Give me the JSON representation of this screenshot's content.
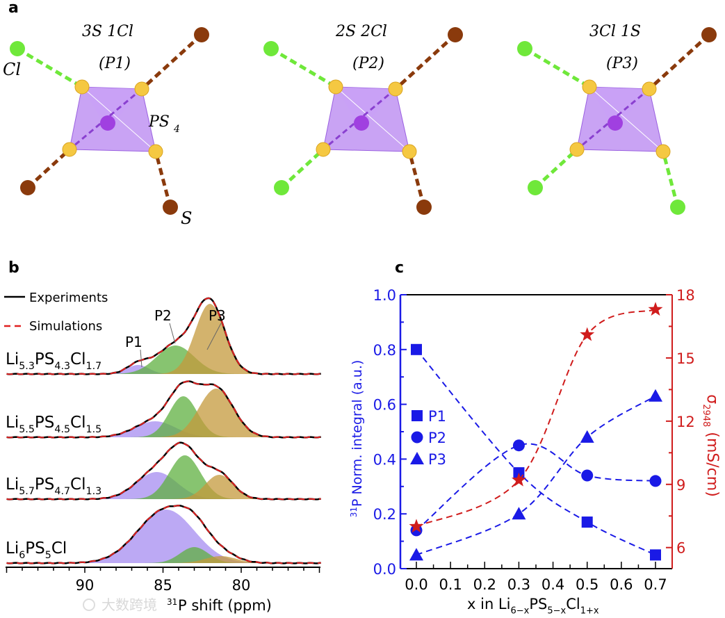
{
  "panel_a": {
    "label": "a",
    "structures": [
      {
        "title": "3S 1Cl",
        "code": "(P1)",
        "ligands": [
          "Cl",
          "S",
          "S",
          "S"
        ]
      },
      {
        "title": "2S 2Cl",
        "code": "(P2)",
        "ligands": [
          "Cl",
          "S",
          "Cl",
          "S"
        ]
      },
      {
        "title": "3Cl 1S",
        "code": "(P3)",
        "ligands": [
          "Cl",
          "S",
          "Cl",
          "Cl"
        ]
      }
    ],
    "annotations": {
      "cl": "Cl",
      "s": "S",
      "ps4": "PS",
      "ps4_sub": "4"
    },
    "colors": {
      "Cl": "#6fe83a",
      "S": "#8a3a0c",
      "S_inner": "#f5c842",
      "P": "#a040e0",
      "tetra": "#b784f0"
    }
  },
  "chart_data": [
    {
      "panel": "b",
      "type": "line",
      "title": "",
      "xlabel_sup": "31",
      "xlabel": "P shift (ppm)",
      "xlim": [
        95,
        75
      ],
      "xticks": [
        "90",
        "85",
        "80"
      ],
      "legend": [
        {
          "label": "Experiments",
          "color": "#000000",
          "style": "solid"
        },
        {
          "label": "Simulations",
          "color": "#e02020",
          "style": "dashed"
        }
      ],
      "legend_position": "top-left",
      "component_colors": {
        "P1": "#a58cf0",
        "P2": "#5fb040",
        "P3": "#c49a3c"
      },
      "peak_labels": [
        "P1",
        "P2",
        "P3"
      ],
      "spectra": [
        {
          "formula": [
            [
              "Li",
              ""
            ],
            [
              "5.3",
              "sub"
            ],
            [
              "PS",
              ""
            ],
            [
              "4.3",
              "sub"
            ],
            [
              "Cl",
              ""
            ],
            [
              "1.7",
              "sub"
            ]
          ],
          "components": [
            {
              "name": "P1",
              "center": 86.6,
              "amp": 0.13,
              "sigma": 0.7
            },
            {
              "name": "P2",
              "center": 84.2,
              "amp": 0.41,
              "sigma": 1.2
            },
            {
              "name": "P3",
              "center": 82.0,
              "amp": 1.01,
              "sigma": 0.95
            }
          ]
        },
        {
          "formula": [
            [
              "Li",
              ""
            ],
            [
              "5.5",
              "sub"
            ],
            [
              "PS",
              ""
            ],
            [
              "4.5",
              "sub"
            ],
            [
              "Cl",
              ""
            ],
            [
              "1.5",
              "sub"
            ]
          ],
          "components": [
            {
              "name": "P1",
              "center": 85.5,
              "amp": 0.23,
              "sigma": 1.3
            },
            {
              "name": "P2",
              "center": 83.7,
              "amp": 0.59,
              "sigma": 0.9
            },
            {
              "name": "P3",
              "center": 81.6,
              "amp": 0.7,
              "sigma": 1.1
            }
          ]
        },
        {
          "formula": [
            [
              "Li",
              ""
            ],
            [
              "5.7",
              "sub"
            ],
            [
              "PS",
              ""
            ],
            [
              "4.7",
              "sub"
            ],
            [
              "Cl",
              ""
            ],
            [
              "1.3",
              "sub"
            ]
          ],
          "components": [
            {
              "name": "P1",
              "center": 85.4,
              "amp": 0.39,
              "sigma": 1.3
            },
            {
              "name": "P2",
              "center": 83.6,
              "amp": 0.63,
              "sigma": 1.0
            },
            {
              "name": "P3",
              "center": 81.4,
              "amp": 0.35,
              "sigma": 0.9
            }
          ]
        },
        {
          "formula": [
            [
              "Li",
              ""
            ],
            [
              "6",
              "sub"
            ],
            [
              "PS",
              ""
            ],
            [
              "5",
              "sub"
            ],
            [
              "Cl",
              ""
            ]
          ],
          "components": [
            {
              "name": "P1",
              "center": 84.8,
              "amp": 0.77,
              "sigma": 1.8
            },
            {
              "name": "P2",
              "center": 83.0,
              "amp": 0.23,
              "sigma": 0.9
            },
            {
              "name": "P3",
              "center": 81.3,
              "amp": 0.1,
              "sigma": 1.0
            }
          ]
        }
      ]
    },
    {
      "panel": "c",
      "type": "scatter",
      "title": "",
      "xlabel": [
        [
          "x in Li",
          ""
        ],
        [
          "6−x",
          "sub"
        ],
        [
          "PS",
          ""
        ],
        [
          "5−x",
          "sub"
        ],
        [
          "Cl",
          ""
        ],
        [
          "1+x",
          "sub"
        ]
      ],
      "ylabel_sup": "31",
      "ylabel": "P Norm. integral (a.u.)",
      "y2label": "σ",
      "y2label_sub": "2948",
      "y2label_unit": " (mS/cm)",
      "x": [
        0.0,
        0.3,
        0.5,
        0.7
      ],
      "xlim": [
        -0.05,
        0.75
      ],
      "xticks": [
        "0.0",
        "0.1",
        "0.2",
        "0.3",
        "0.4",
        "0.5",
        "0.6",
        "0.7"
      ],
      "ylim": [
        0,
        1.0
      ],
      "yticks": [
        "0.0",
        "0.2",
        "0.4",
        "0.6",
        "0.8",
        "1.0"
      ],
      "y2lim": [
        5,
        18
      ],
      "y2ticks": [
        "6",
        "9",
        "12",
        "15",
        "18"
      ],
      "legend_position": "center-left",
      "series": [
        {
          "name": "P1",
          "marker": "square",
          "axis": "left",
          "color": "#1a1ae6",
          "values": [
            0.8,
            0.35,
            0.17,
            0.05
          ]
        },
        {
          "name": "P2",
          "marker": "circle",
          "axis": "left",
          "color": "#1a1ae6",
          "values": [
            0.14,
            0.45,
            0.34,
            0.32
          ]
        },
        {
          "name": "P3",
          "marker": "triangle",
          "axis": "left",
          "color": "#1a1ae6",
          "values": [
            0.05,
            0.2,
            0.48,
            0.63
          ]
        },
        {
          "name": "σ2948",
          "marker": "star",
          "axis": "right",
          "color": "#d01c1c",
          "values": [
            7.0,
            9.2,
            16.1,
            17.3
          ]
        }
      ]
    }
  ],
  "panel_labels": {
    "b": "b",
    "c": "c"
  },
  "watermark": "大数跨境"
}
